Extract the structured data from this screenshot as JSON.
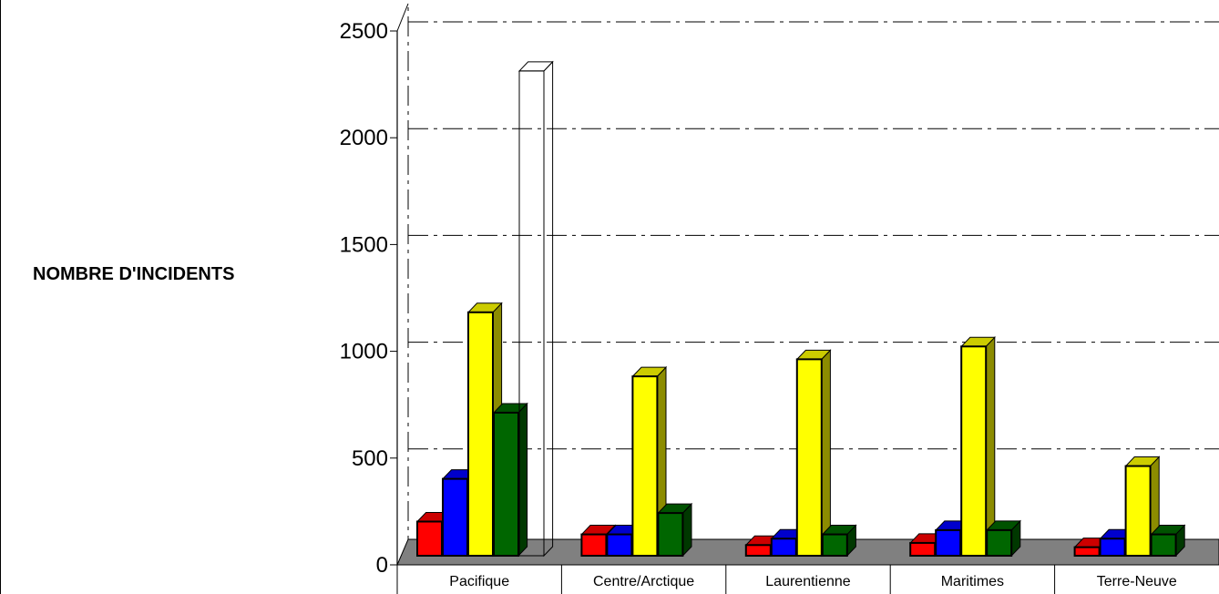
{
  "chart_data": {
    "type": "bar",
    "ylabel": "NOMBRE D'INCIDENTS",
    "xlabel": "",
    "title": "",
    "ylim": [
      0,
      2500
    ],
    "yticks": [
      0,
      500,
      1000,
      1500,
      2000,
      2500
    ],
    "categories": [
      "Pacifique",
      "Centre/Arctique",
      "Laurentienne",
      "Maritimes",
      "Terre-Neuve"
    ],
    "series": [
      {
        "color": "#ff0000",
        "values": [
          160,
          100,
          50,
          60,
          40
        ]
      },
      {
        "color": "#0000ff",
        "values": [
          360,
          100,
          80,
          120,
          80
        ]
      },
      {
        "color": "#ffff00",
        "values": [
          1140,
          840,
          920,
          980,
          420
        ]
      },
      {
        "color": "#006600",
        "values": [
          670,
          200,
          100,
          120,
          100
        ]
      },
      {
        "color": "none",
        "values": [
          2270,
          null,
          null,
          null,
          null
        ]
      }
    ],
    "grid": true,
    "legend": "none",
    "style": "3d"
  }
}
